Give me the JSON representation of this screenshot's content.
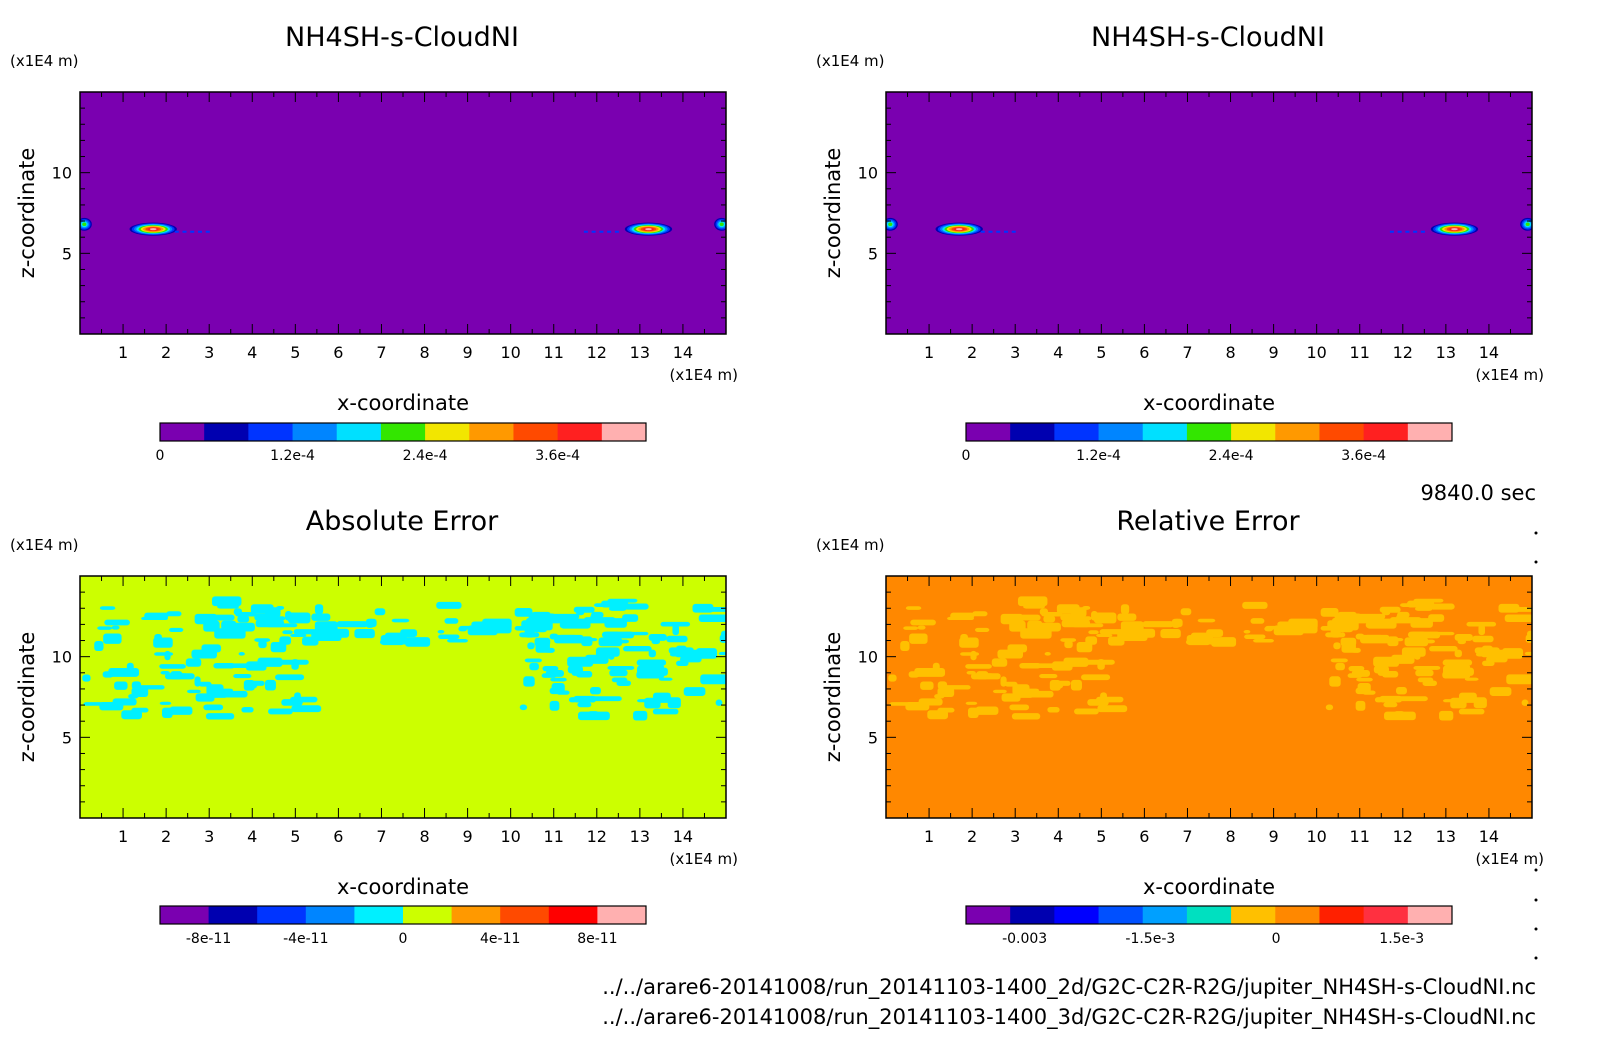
{
  "time_label": "9840.0 sec",
  "file_paths": [
    "../../arare6-20141008/run_20141103-1400_2d/G2C-C2R-R2G/jupiter_NH4SH-s-CloudNI.nc",
    "../../arare6-20141008/run_20141103-1400_3d/G2C-C2R-R2G/jupiter_NH4SH-s-CloudNI.nc"
  ],
  "chart_data": [
    {
      "type": "heatmap",
      "title": "NH4SH-s-CloudNI",
      "xlabel": "x-coordinate",
      "ylabel": "z-coordinate",
      "x_unit": "(x1E4 m)",
      "y_unit": "(x1E4 m)",
      "xlim": [
        0,
        15
      ],
      "ylim": [
        0,
        15
      ],
      "x_ticks": [
        "1",
        "2",
        "3",
        "4",
        "5",
        "6",
        "7",
        "8",
        "9",
        "10",
        "11",
        "12",
        "13",
        "14"
      ],
      "y_ticks": [
        "5",
        "10"
      ],
      "background_color": "#7a00b0",
      "colorbar": {
        "colors": [
          "#7a00b0",
          "#0000b0",
          "#0034ff",
          "#0085ff",
          "#00e0ff",
          "#33e600",
          "#f2e600",
          "#ff9900",
          "#ff4a00",
          "#ff2020",
          "#ffb0b0"
        ],
        "tick_labels": [
          "0",
          "1.2e-4",
          "2.4e-4",
          "3.6e-4"
        ],
        "tick_values": [
          0,
          0.00012,
          0.00024,
          0.00036
        ],
        "range": [
          0,
          0.00044
        ]
      },
      "features": [
        {
          "x": 1.7,
          "z": 6.5,
          "width": 1.1,
          "height": 0.8,
          "peak": 0.0004
        },
        {
          "x": 13.2,
          "z": 6.5,
          "width": 1.1,
          "height": 0.8,
          "peak": 0.0004
        },
        {
          "x": 0.1,
          "z": 6.8,
          "width": 0.35,
          "height": 0.8,
          "peak": 0.0002
        },
        {
          "x": 14.9,
          "z": 6.8,
          "width": 0.35,
          "height": 0.8,
          "peak": 0.0002
        }
      ]
    },
    {
      "type": "heatmap",
      "title": "NH4SH-s-CloudNI",
      "xlabel": "x-coordinate",
      "ylabel": "z-coordinate",
      "x_unit": "(x1E4 m)",
      "y_unit": "(x1E4 m)",
      "xlim": [
        0,
        15
      ],
      "ylim": [
        0,
        15
      ],
      "x_ticks": [
        "1",
        "2",
        "3",
        "4",
        "5",
        "6",
        "7",
        "8",
        "9",
        "10",
        "11",
        "12",
        "13",
        "14"
      ],
      "y_ticks": [
        "5",
        "10"
      ],
      "background_color": "#7a00b0",
      "colorbar": {
        "colors": [
          "#7a00b0",
          "#0000b0",
          "#0034ff",
          "#0085ff",
          "#00e0ff",
          "#33e600",
          "#f2e600",
          "#ff9900",
          "#ff4a00",
          "#ff2020",
          "#ffb0b0"
        ],
        "tick_labels": [
          "0",
          "1.2e-4",
          "2.4e-4",
          "3.6e-4"
        ],
        "tick_values": [
          0,
          0.00012,
          0.00024,
          0.00036
        ],
        "range": [
          0,
          0.00044
        ]
      },
      "features": [
        {
          "x": 1.7,
          "z": 6.5,
          "width": 1.1,
          "height": 0.8,
          "peak": 0.0004
        },
        {
          "x": 13.2,
          "z": 6.5,
          "width": 1.1,
          "height": 0.8,
          "peak": 0.0004
        },
        {
          "x": 0.1,
          "z": 6.8,
          "width": 0.35,
          "height": 0.8,
          "peak": 0.0002
        },
        {
          "x": 14.9,
          "z": 6.8,
          "width": 0.35,
          "height": 0.8,
          "peak": 0.0002
        }
      ]
    },
    {
      "type": "heatmap",
      "title": "Absolute Error",
      "xlabel": "x-coordinate",
      "ylabel": "z-coordinate",
      "x_unit": "(x1E4 m)",
      "y_unit": "(x1E4 m)",
      "xlim": [
        0,
        15
      ],
      "ylim": [
        0,
        15
      ],
      "x_ticks": [
        "1",
        "2",
        "3",
        "4",
        "5",
        "6",
        "7",
        "8",
        "9",
        "10",
        "11",
        "12",
        "13",
        "14"
      ],
      "y_ticks": [
        "5",
        "10"
      ],
      "background_color": "#ccff00",
      "patch_color": "#00f0ff",
      "colorbar": {
        "colors": [
          "#7a00b0",
          "#0000b0",
          "#0034ff",
          "#0085ff",
          "#00f0ff",
          "#ccff00",
          "#ff9900",
          "#ff4a00",
          "#ff0000",
          "#ffb0b0"
        ],
        "tick_labels": [
          "-8e-11",
          "-4e-11",
          "0",
          "4e-11",
          "8e-11"
        ],
        "tick_values": [
          -8e-11,
          -4e-11,
          0,
          4e-11,
          8e-11
        ],
        "range": [
          -1e-10,
          1e-10
        ]
      }
    },
    {
      "type": "heatmap",
      "title": "Relative Error",
      "xlabel": "x-coordinate",
      "ylabel": "z-coordinate",
      "x_unit": "(x1E4 m)",
      "y_unit": "(x1E4 m)",
      "xlim": [
        0,
        15
      ],
      "ylim": [
        0,
        15
      ],
      "x_ticks": [
        "1",
        "2",
        "3",
        "4",
        "5",
        "6",
        "7",
        "8",
        "9",
        "10",
        "11",
        "12",
        "13",
        "14"
      ],
      "y_ticks": [
        "5",
        "10"
      ],
      "background_color": "#ff8800",
      "patch_color": "#ffc000",
      "colorbar": {
        "colors": [
          "#7a00b0",
          "#0000b0",
          "#0000ff",
          "#0050ff",
          "#00a0ff",
          "#00e0c0",
          "#ffc000",
          "#ff8800",
          "#ff2000",
          "#ff3040",
          "#ffb0b0"
        ],
        "tick_labels": [
          "-0.003",
          "-1.5e-3",
          "0",
          "1.5e-3"
        ],
        "tick_values": [
          -0.003,
          -0.0015,
          0,
          0.0015
        ],
        "range": [
          -0.0037,
          0.0021
        ]
      }
    }
  ]
}
